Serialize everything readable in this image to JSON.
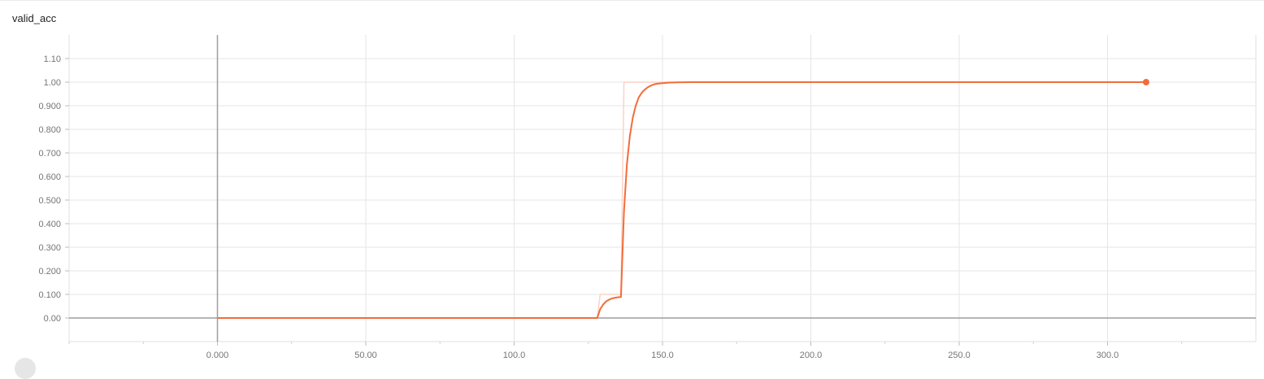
{
  "chart_data": {
    "type": "line",
    "title": "valid_acc",
    "xlabel": "",
    "ylabel": "",
    "xlim": [
      -50,
      350
    ],
    "ylim": [
      -0.1,
      1.2
    ],
    "x_ticks": [
      0,
      50,
      100,
      150,
      200,
      250,
      300
    ],
    "x_tick_labels": [
      "0.000",
      "50.00",
      "100.0",
      "150.0",
      "200.0",
      "250.0",
      "300.0"
    ],
    "y_ticks": [
      0,
      0.1,
      0.2,
      0.3,
      0.4,
      0.5,
      0.6,
      0.7,
      0.8,
      0.9,
      1.0,
      1.1
    ],
    "y_tick_labels": [
      "0.00",
      "0.100",
      "0.200",
      "0.300",
      "0.400",
      "0.500",
      "0.600",
      "0.700",
      "0.800",
      "0.900",
      "1.00",
      "1.10"
    ],
    "grid": true,
    "colors": {
      "smoothed": "#f26c3b",
      "raw": "#fbd3c4",
      "axis": "#9e9e9e",
      "grid": "#e6e6e6"
    },
    "series": [
      {
        "role": "raw",
        "x": [
          0,
          128,
          129,
          136,
          137,
          313
        ],
        "y": [
          0,
          0,
          0.1,
          0.1,
          1.0,
          1.0
        ]
      },
      {
        "role": "smoothed",
        "x": [
          0,
          128,
          129,
          130,
          131,
          132,
          133,
          134,
          135,
          136,
          137,
          138,
          139,
          140,
          141,
          142,
          143,
          144,
          145,
          146,
          147,
          148,
          150,
          152,
          155,
          160,
          200,
          313
        ],
        "y": [
          0,
          0,
          0.038,
          0.057,
          0.07,
          0.078,
          0.083,
          0.086,
          0.088,
          0.089,
          0.45,
          0.65,
          0.77,
          0.85,
          0.9,
          0.935,
          0.955,
          0.968,
          0.978,
          0.985,
          0.99,
          0.993,
          0.996,
          0.998,
          0.999,
          1.0,
          1.0,
          1.0
        ]
      }
    ]
  }
}
